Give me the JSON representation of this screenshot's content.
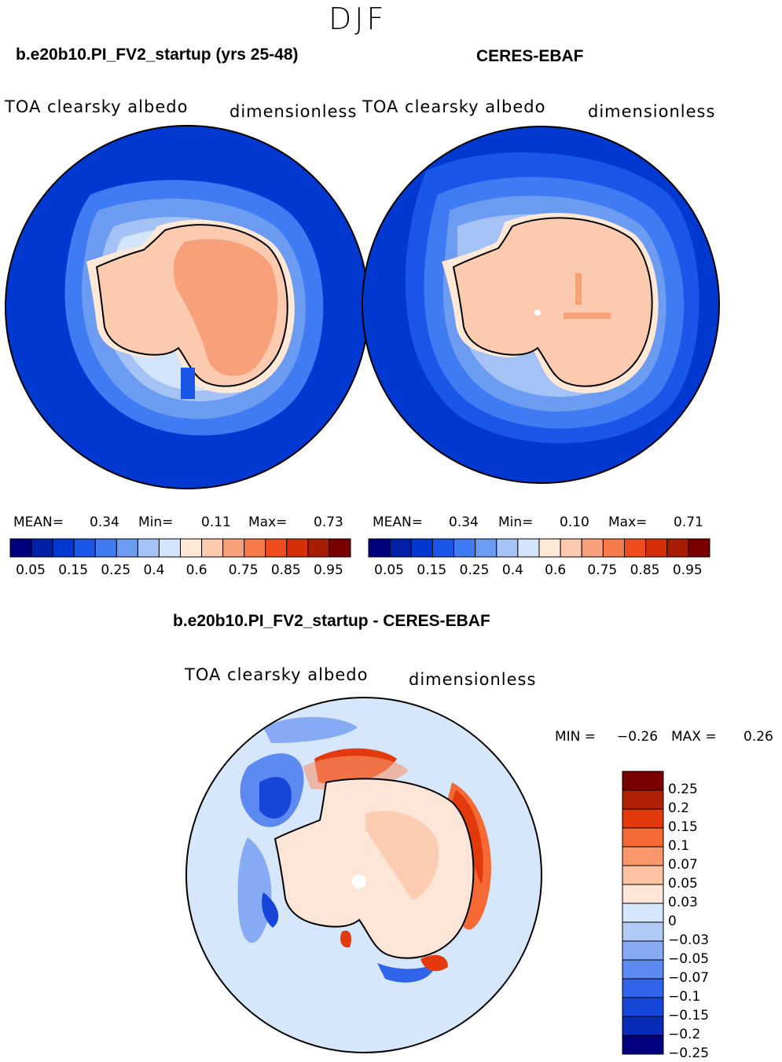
{
  "season": "DJF",
  "panels": [
    {
      "title": "b.e20b10.PI_FV2_startup (yrs 25-48)",
      "variable": "TOA clearsky albedo",
      "units": "dimensionless",
      "mean_label": "MEAN=",
      "mean": "0.34",
      "min_label": "Min=",
      "min": "0.11",
      "max_label": "Max=",
      "max": "0.73"
    },
    {
      "title": "CERES-EBAF",
      "variable": "TOA clearsky albedo",
      "units": "dimensionless",
      "mean_label": "MEAN=",
      "mean": "0.34",
      "min_label": "Min=",
      "min": "0.10",
      "max_label": "Max=",
      "max": "0.71"
    }
  ],
  "colorbar": {
    "colors": [
      "#00007f",
      "#0020a8",
      "#0038d0",
      "#1a57e8",
      "#3f7bf2",
      "#6c9cf2",
      "#a4c2f5",
      "#d3e5fb",
      "#ffe8d6",
      "#fccaae",
      "#f8a07a",
      "#f77a4a",
      "#f04c1c",
      "#d52e08",
      "#a81c04",
      "#7a0000"
    ],
    "labels": [
      "0.05",
      "0.15",
      "0.25",
      "0.4",
      "0.6",
      "0.75",
      "0.85",
      "0.95"
    ]
  },
  "diff": {
    "title": "b.e20b10.PI_FV2_startup - CERES-EBAF",
    "variable": "TOA clearsky albedo",
    "units": "dimensionless",
    "min_label": "MIN =",
    "min": "−0.26",
    "max_label": "MAX =",
    "max": "0.26",
    "colorbar": {
      "colors": [
        "#7a0000",
        "#b02004",
        "#e23a0c",
        "#f56a34",
        "#f9966c",
        "#fcc2a2",
        "#fde6d8",
        "#d6e6fb",
        "#b0cbf6",
        "#86aaf3",
        "#5c8af0",
        "#3064ea",
        "#1646d8",
        "#082cb8",
        "#00007f"
      ],
      "labels": [
        "0.25",
        "0.2",
        "0.15",
        "0.1",
        "0.07",
        "0.05",
        "0.03",
        "0",
        "−0.03",
        "−0.05",
        "−0.07",
        "−0.1",
        "−0.15",
        "−0.2",
        "−0.25"
      ]
    }
  }
}
